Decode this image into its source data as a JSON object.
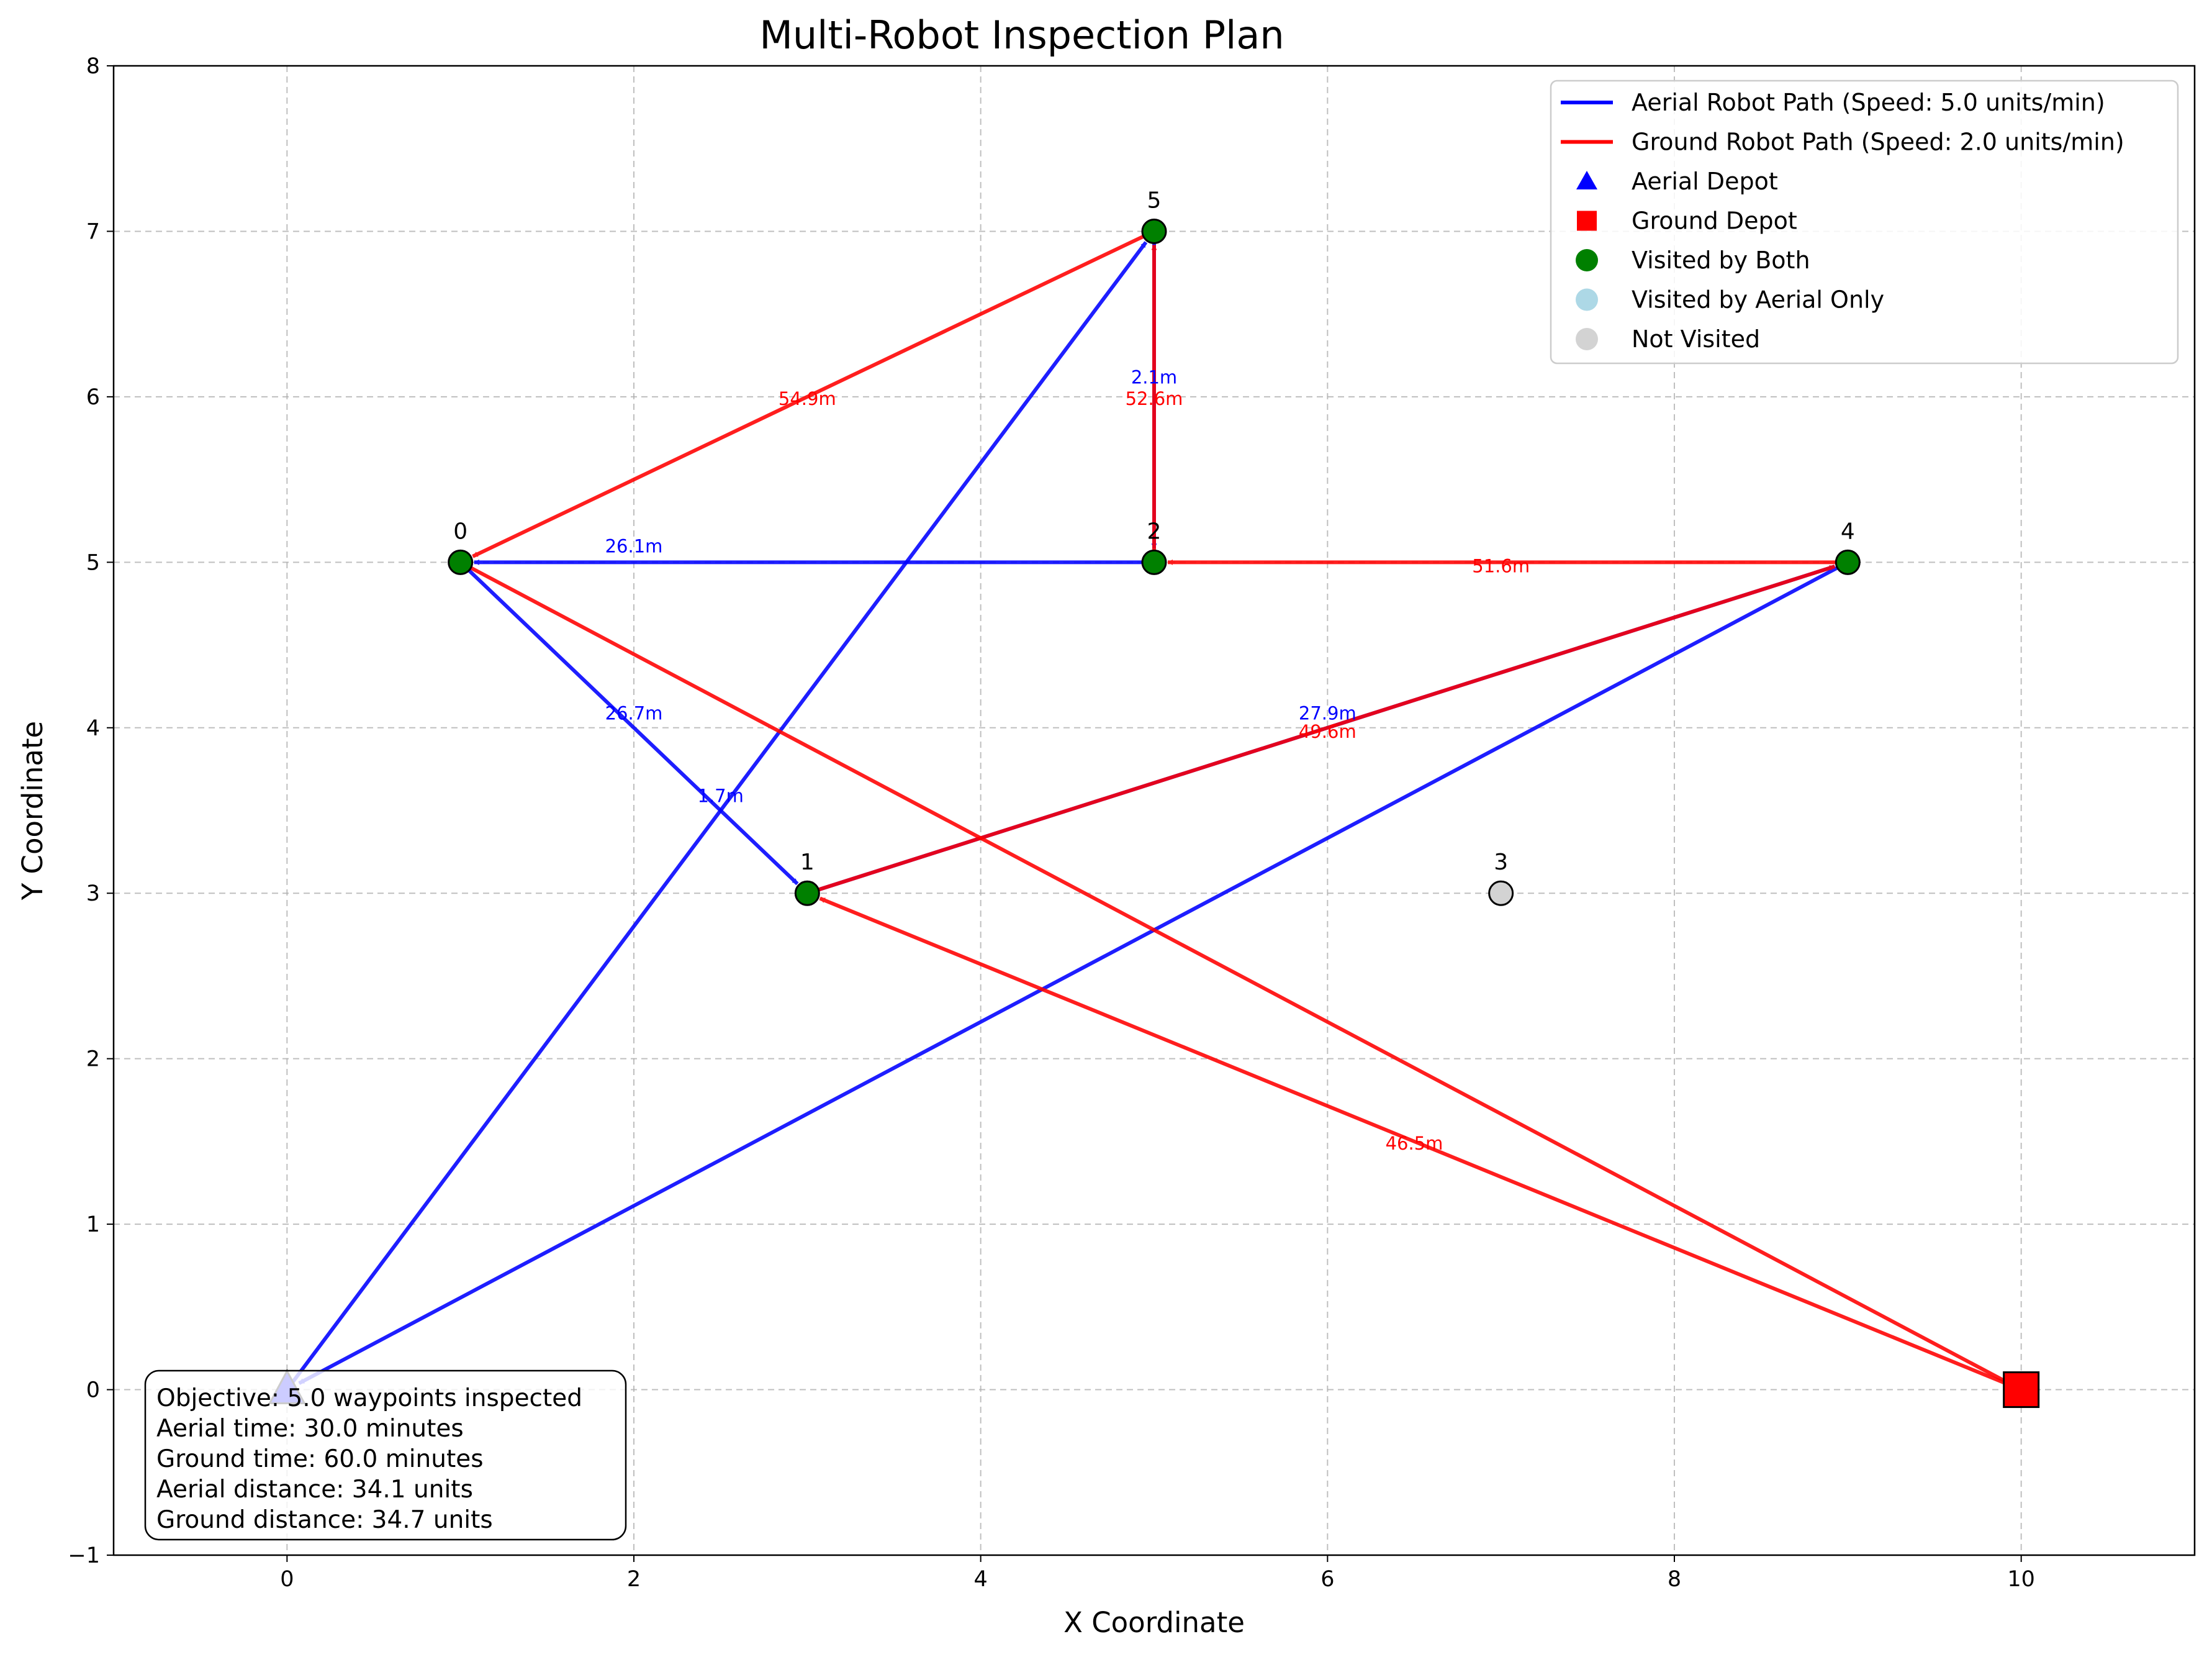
{
  "chart_data": {
    "type": "scatter",
    "title": "Multi-Robot Inspection Plan",
    "xlabel": "X Coordinate",
    "ylabel": "Y Coordinate",
    "xlim": [
      -1,
      11
    ],
    "ylim": [
      -1,
      8
    ],
    "xticks": [
      "0",
      "2",
      "4",
      "6",
      "8",
      "10"
    ],
    "xtick_values": [
      0,
      2,
      4,
      6,
      8,
      10
    ],
    "yticks": [
      "−1",
      "0",
      "1",
      "2",
      "3",
      "4",
      "5",
      "6",
      "7",
      "8"
    ],
    "ytick_values": [
      -1,
      0,
      1,
      2,
      3,
      4,
      5,
      6,
      7,
      8
    ],
    "grid": true,
    "colors": {
      "aerial": "#0000ff",
      "ground": "#ff0000",
      "both": "#008000",
      "aerial_only": "#add8e6",
      "not_visited": "#d3d3d3",
      "overlap": "#b0003a"
    },
    "depots": [
      {
        "name": "aerial-depot",
        "x": 0,
        "y": 0,
        "marker": "triangle",
        "color": "#0000ff"
      },
      {
        "name": "ground-depot",
        "x": 10,
        "y": 0,
        "marker": "square",
        "color": "#ff0000"
      }
    ],
    "waypoints": [
      {
        "label": "0",
        "x": 1,
        "y": 5,
        "status": "both"
      },
      {
        "label": "1",
        "x": 3,
        "y": 3,
        "status": "both"
      },
      {
        "label": "2",
        "x": 5,
        "y": 5,
        "status": "both"
      },
      {
        "label": "3",
        "x": 7,
        "y": 3,
        "status": "not_visited"
      },
      {
        "label": "4",
        "x": 9,
        "y": 5,
        "status": "both"
      },
      {
        "label": "5",
        "x": 5,
        "y": 7,
        "status": "both"
      }
    ],
    "series": [
      {
        "name": "Aerial Robot Path (Speed: 5.0 units/min)",
        "color": "#0000ff",
        "path": [
          [
            0,
            0
          ],
          [
            5,
            7
          ],
          [
            5,
            5
          ],
          [
            1,
            5
          ],
          [
            3,
            3
          ],
          [
            9,
            5
          ],
          [
            0,
            0
          ]
        ]
      },
      {
        "name": "Ground Robot Path (Speed: 2.0 units/min)",
        "color": "#ff0000",
        "path": [
          [
            10,
            0
          ],
          [
            3,
            3
          ],
          [
            9,
            5
          ],
          [
            5,
            5
          ],
          [
            5,
            7
          ],
          [
            1,
            5
          ],
          [
            10,
            0
          ]
        ]
      }
    ],
    "annotations": [
      {
        "text": "26.1m",
        "x": 2.0,
        "y": 5.06,
        "color": "#0000ff"
      },
      {
        "text": "26.7m",
        "x": 2.0,
        "y": 4.05,
        "color": "#0000ff"
      },
      {
        "text": "1.7m",
        "x": 2.5,
        "y": 3.55,
        "color": "#0000ff"
      },
      {
        "text": "2.1m",
        "x": 5.0,
        "y": 6.08,
        "color": "#0000ff"
      },
      {
        "text": "27.9m",
        "x": 6.0,
        "y": 4.05,
        "color": "#0000ff"
      },
      {
        "text": "54.9m",
        "x": 3.0,
        "y": 5.95,
        "color": "#ff0000"
      },
      {
        "text": "52.6m",
        "x": 5.0,
        "y": 5.95,
        "color": "#ff0000"
      },
      {
        "text": "51.6m",
        "x": 7.0,
        "y": 4.94,
        "color": "#ff0000"
      },
      {
        "text": "49.6m",
        "x": 6.0,
        "y": 3.94,
        "color": "#ff0000"
      },
      {
        "text": "46.5m",
        "x": 6.5,
        "y": 1.45,
        "color": "#ff0000"
      }
    ],
    "legend": {
      "placement": "upper-right",
      "entries": [
        {
          "label": "Aerial Robot Path (Speed: 5.0 units/min)",
          "kind": "line",
          "color": "#0000ff"
        },
        {
          "label": "Ground Robot Path (Speed: 2.0 units/min)",
          "kind": "line",
          "color": "#ff0000"
        },
        {
          "label": "Aerial Depot",
          "kind": "triangle",
          "color": "#0000ff"
        },
        {
          "label": "Ground Depot",
          "kind": "square",
          "color": "#ff0000"
        },
        {
          "label": "Visited by Both",
          "kind": "circle",
          "color": "#008000"
        },
        {
          "label": "Visited by Aerial Only",
          "kind": "circle",
          "color": "#add8e6"
        },
        {
          "label": "Not Visited",
          "kind": "circle",
          "color": "#d3d3d3"
        }
      ]
    },
    "info_box": {
      "placement": "lower-left",
      "lines": [
        "Objective: 5.0 waypoints inspected",
        "Aerial time: 30.0 minutes",
        "Ground time: 60.0 minutes",
        "Aerial distance: 34.1 units",
        "Ground distance: 34.7 units"
      ]
    }
  }
}
